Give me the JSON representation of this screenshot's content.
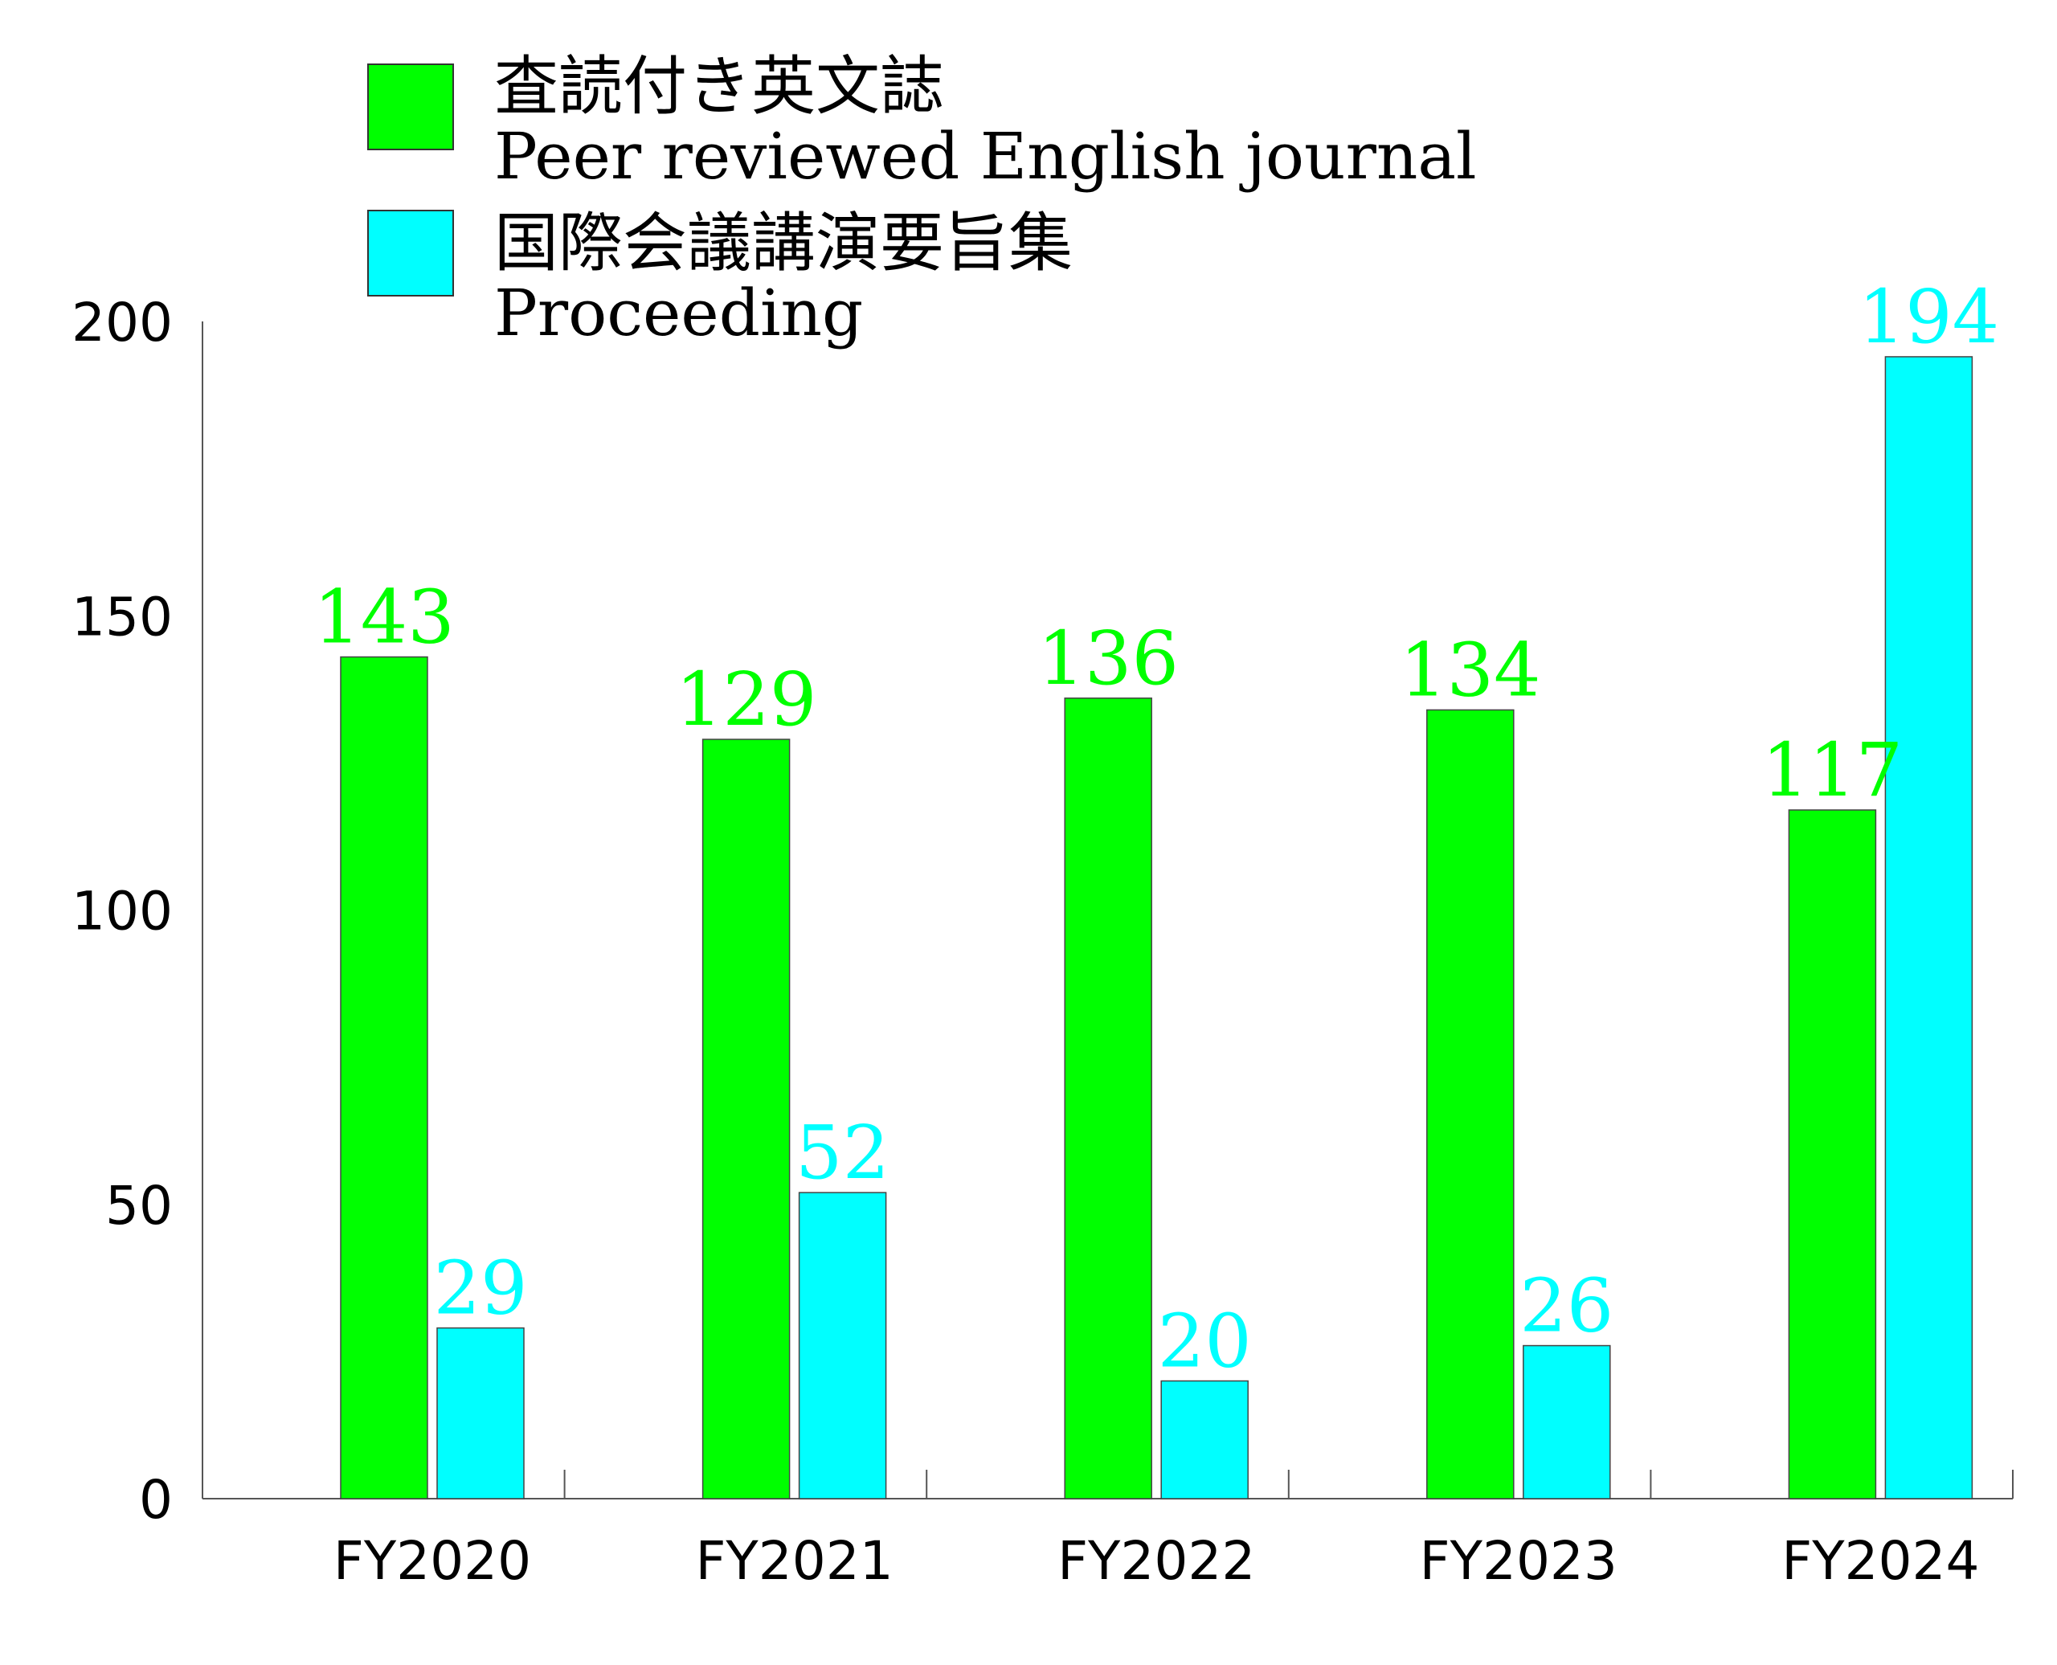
{
  "chart_data": {
    "type": "bar",
    "categories": [
      "FY2020",
      "FY2021",
      "FY2022",
      "FY2023",
      "FY2024"
    ],
    "series": [
      {
        "name_ja": "査読付き英文誌",
        "name": "Peer reviewed English journal",
        "color": "#00ff00",
        "values": [
          143,
          129,
          136,
          134,
          117
        ]
      },
      {
        "name_ja": "国際会議講演要旨集",
        "name": "Proceeding",
        "color": "#00ffff",
        "values": [
          29,
          52,
          20,
          26,
          194
        ]
      }
    ],
    "y_ticks": [
      0,
      50,
      100,
      150,
      200
    ],
    "ylim": [
      0,
      200
    ],
    "legend_position": "top",
    "grid": false,
    "title": "",
    "xlabel": "",
    "ylabel": ""
  }
}
